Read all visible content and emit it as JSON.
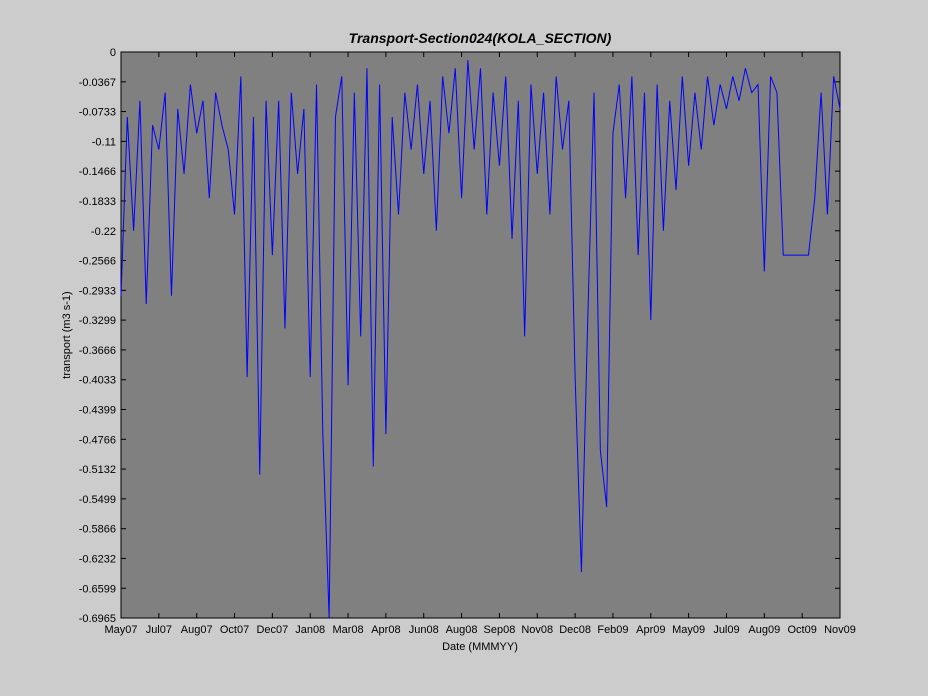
{
  "chart_data": {
    "type": "line",
    "title": "Transport-Section024(KOLA_SECTION)",
    "x_label": "Date (MMMYY)",
    "y_label": "transport (m3 s-1)",
    "color": "#0000ff",
    "grid": false,
    "categories": [
      "May07",
      null,
      null,
      null,
      null,
      null,
      "Jul07",
      null,
      null,
      null,
      null,
      null,
      "Aug07",
      null,
      null,
      null,
      null,
      null,
      "Oct07",
      null,
      null,
      null,
      null,
      null,
      "Dec07",
      null,
      null,
      null,
      null,
      null,
      "Jan08",
      null,
      null,
      null,
      null,
      null,
      "Mar08",
      null,
      null,
      null,
      null,
      null,
      "Apr08",
      null,
      null,
      null,
      null,
      null,
      "Jun08",
      null,
      null,
      null,
      null,
      null,
      "Aug08",
      null,
      null,
      null,
      null,
      null,
      "Sep08",
      null,
      null,
      null,
      null,
      null,
      "Nov08",
      null,
      null,
      null,
      null,
      null,
      "Dec08",
      null,
      null,
      null,
      null,
      null,
      "Feb09",
      null,
      null,
      null,
      null,
      null,
      "Apr09",
      null,
      null,
      null,
      null,
      null,
      "May09",
      null,
      null,
      null,
      null,
      null,
      "Jul09",
      null,
      null,
      null,
      null,
      null,
      "Aug09",
      null,
      null,
      null,
      null,
      null,
      "Oct09",
      null,
      null,
      null,
      null,
      null,
      "Nov09"
    ],
    "values": [
      -0.3,
      -0.08,
      -0.22,
      -0.06,
      -0.31,
      -0.09,
      -0.12,
      -0.05,
      -0.3,
      -0.07,
      -0.15,
      -0.04,
      -0.1,
      -0.06,
      -0.18,
      -0.05,
      -0.09,
      -0.12,
      -0.2,
      -0.03,
      -0.4,
      -0.08,
      -0.52,
      -0.06,
      -0.25,
      -0.06,
      -0.34,
      -0.05,
      -0.15,
      -0.07,
      -0.4,
      -0.04,
      -0.47,
      -0.6965,
      -0.08,
      -0.03,
      -0.41,
      -0.05,
      -0.35,
      -0.02,
      -0.51,
      -0.04,
      -0.47,
      -0.08,
      -0.2,
      -0.05,
      -0.12,
      -0.04,
      -0.15,
      -0.06,
      -0.22,
      -0.03,
      -0.1,
      -0.02,
      -0.18,
      -0.01,
      -0.12,
      -0.02,
      -0.2,
      -0.05,
      -0.14,
      -0.03,
      -0.23,
      -0.06,
      -0.35,
      -0.04,
      -0.15,
      -0.05,
      -0.2,
      -0.03,
      -0.12,
      -0.06,
      -0.4,
      -0.64,
      -0.33,
      -0.05,
      -0.49,
      -0.56,
      -0.1,
      -0.04,
      -0.18,
      -0.03,
      -0.25,
      -0.05,
      -0.33,
      -0.04,
      -0.22,
      -0.06,
      -0.17,
      -0.03,
      -0.14,
      -0.05,
      -0.12,
      -0.03,
      -0.09,
      -0.04,
      -0.07,
      -0.03,
      -0.06,
      -0.02,
      -0.05,
      -0.04,
      -0.27,
      -0.03,
      -0.05,
      -0.25,
      -0.25,
      -0.25,
      -0.25,
      -0.25,
      -0.18,
      -0.05,
      -0.2,
      -0.03,
      -0.07
    ],
    "ylim": [
      -0.6965,
      0
    ],
    "yticks": [
      0,
      -0.0367,
      -0.0733,
      -0.11,
      -0.1466,
      -0.1833,
      -0.22,
      -0.2566,
      -0.2933,
      -0.3299,
      -0.3666,
      -0.4033,
      -0.4399,
      -0.4766,
      -0.5132,
      -0.5499,
      -0.5866,
      -0.6232,
      -0.6599,
      -0.6965
    ]
  }
}
